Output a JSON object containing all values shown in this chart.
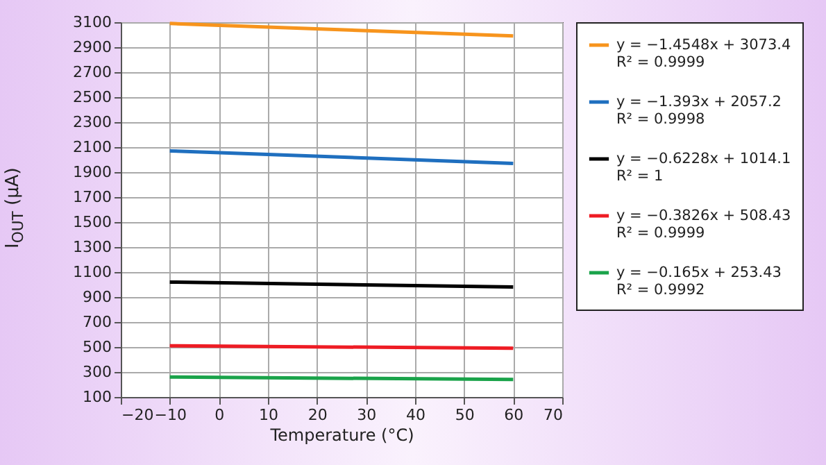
{
  "chart_data": {
    "type": "line",
    "xlabel": "Temperature (°C)",
    "ylabel": "I$_{OUT}$ (μA)",
    "xlim": [
      -20,
      70
    ],
    "xticks": [
      -20,
      -10,
      0,
      10,
      20,
      30,
      40,
      50,
      60,
      70
    ],
    "ylim": [
      100,
      3100
    ],
    "yticks": [
      100,
      300,
      500,
      700,
      900,
      1100,
      1300,
      1500,
      1700,
      1900,
      2100,
      2300,
      2500,
      2700,
      2900,
      3100
    ],
    "grid": true,
    "legend": "right",
    "x": [
      -10,
      60
    ],
    "series": [
      {
        "name": "y = −1.4548x + 3073.4\nR² = 0.9999",
        "color": "#f7941d",
        "values": [
          3090,
          2990
        ]
      },
      {
        "name": "y = −1.393x + 2057.2\nR² = 0.9998",
        "color": "#1f6fbf",
        "values": [
          2070,
          1970
        ]
      },
      {
        "name": "y = −0.6228x + 1014.1\nR² = 1",
        "color": "#000000",
        "values": [
          1020,
          980
        ]
      },
      {
        "name": "y = −0.3826x + 508.43\nR² = 0.9999",
        "color": "#ee1c24",
        "values": [
          510,
          490
        ]
      },
      {
        "name": "y = −0.165x + 253.43\nR² = 0.9992",
        "color": "#1aa34a",
        "values": [
          260,
          240
        ]
      }
    ]
  }
}
